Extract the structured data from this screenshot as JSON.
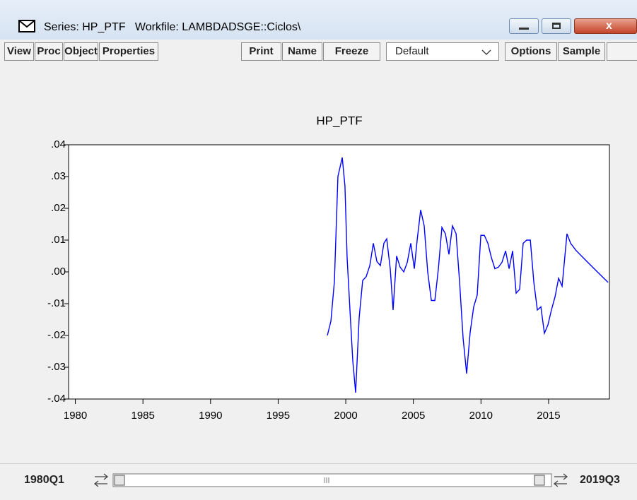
{
  "window": {
    "title": "Series: HP_PTF   Workfile: LAMBDADSGE::Ciclos\\"
  },
  "toolbar": {
    "left": [
      "View",
      "Proc",
      "Object",
      "Properties"
    ],
    "middle": [
      "Print",
      "Name",
      "Freeze"
    ],
    "dropdown": "Default",
    "right": [
      "Options",
      "Sample"
    ]
  },
  "chart_data": {
    "type": "line",
    "title": "HP_PTF",
    "color": "#0000ff",
    "x": [
      1998.64,
      1998.9,
      1999.16,
      1999.42,
      1999.74,
      1999.94,
      2000.1,
      2000.31,
      2000.52,
      2000.73,
      2000.99,
      2001.25,
      2001.51,
      2001.78,
      2002.04,
      2002.3,
      2002.56,
      2002.82,
      2003.03,
      2003.29,
      2003.5,
      2003.76,
      2004.02,
      2004.29,
      2004.55,
      2004.81,
      2005.07,
      2005.28,
      2005.54,
      2005.8,
      2006.06,
      2006.33,
      2006.59,
      2006.85,
      2007.11,
      2007.37,
      2007.63,
      2007.89,
      2008.16,
      2008.42,
      2008.68,
      2008.94,
      2009.2,
      2009.46,
      2009.72,
      2009.99,
      2010.25,
      2010.51,
      2010.77,
      2011.03,
      2011.29,
      2011.55,
      2011.82,
      2012.08,
      2012.34,
      2012.6,
      2012.86,
      2013.12,
      2013.38,
      2013.65,
      2013.91,
      2014.17,
      2014.43,
      2014.69,
      2014.95,
      2015.21,
      2015.48,
      2015.74,
      2016.0,
      2016.36,
      2016.63,
      2017.04,
      2017.83,
      2018.61,
      2019.4
    ],
    "values": [
      -0.02,
      -0.0155,
      -0.003,
      0.03,
      0.036,
      0.027,
      0.0045,
      -0.012,
      -0.028,
      -0.038,
      -0.0145,
      -0.0027,
      -0.0015,
      0.002,
      0.009,
      0.0033,
      0.002,
      0.009,
      0.0104,
      0.001,
      -0.012,
      0.005,
      0.0015,
      0.0,
      0.003,
      0.009,
      0.001,
      0.01,
      0.0195,
      0.0145,
      0.0,
      -0.009,
      -0.009,
      0.001,
      0.014,
      0.012,
      0.0055,
      0.0145,
      0.012,
      -0.0033,
      -0.021,
      -0.032,
      -0.019,
      -0.011,
      -0.0073,
      0.0115,
      0.0115,
      0.009,
      0.0045,
      0.001,
      0.0015,
      0.003,
      0.0066,
      0.001,
      0.0066,
      -0.0067,
      -0.0055,
      0.009,
      0.01,
      0.01,
      -0.0033,
      -0.012,
      -0.011,
      -0.0193,
      -0.0167,
      -0.012,
      -0.0078,
      -0.002,
      -0.0045,
      0.012,
      0.009,
      0.0067,
      0.0033,
      0.0,
      -0.0033
    ],
    "xlim": [
      1979.5,
      2019.5
    ],
    "xticks": [
      1980,
      1985,
      1990,
      1995,
      2000,
      2005,
      2010,
      2015
    ],
    "ylim": [
      -0.04,
      0.04
    ],
    "yticks": [
      {
        "value": -0.04,
        "label": "-.04"
      },
      {
        "value": -0.03,
        "label": "-.03"
      },
      {
        "value": -0.02,
        "label": "-.02"
      },
      {
        "value": -0.01,
        "label": "-.01"
      },
      {
        "value": 0,
        "label": ".00"
      },
      {
        "value": 0.01,
        "label": ".01"
      },
      {
        "value": 0.02,
        "label": ".02"
      },
      {
        "value": 0.03,
        "label": ".03"
      },
      {
        "value": 0.04,
        "label": ".04"
      }
    ]
  },
  "sample_bar": {
    "start": "1980Q1",
    "end": "2019Q3"
  }
}
